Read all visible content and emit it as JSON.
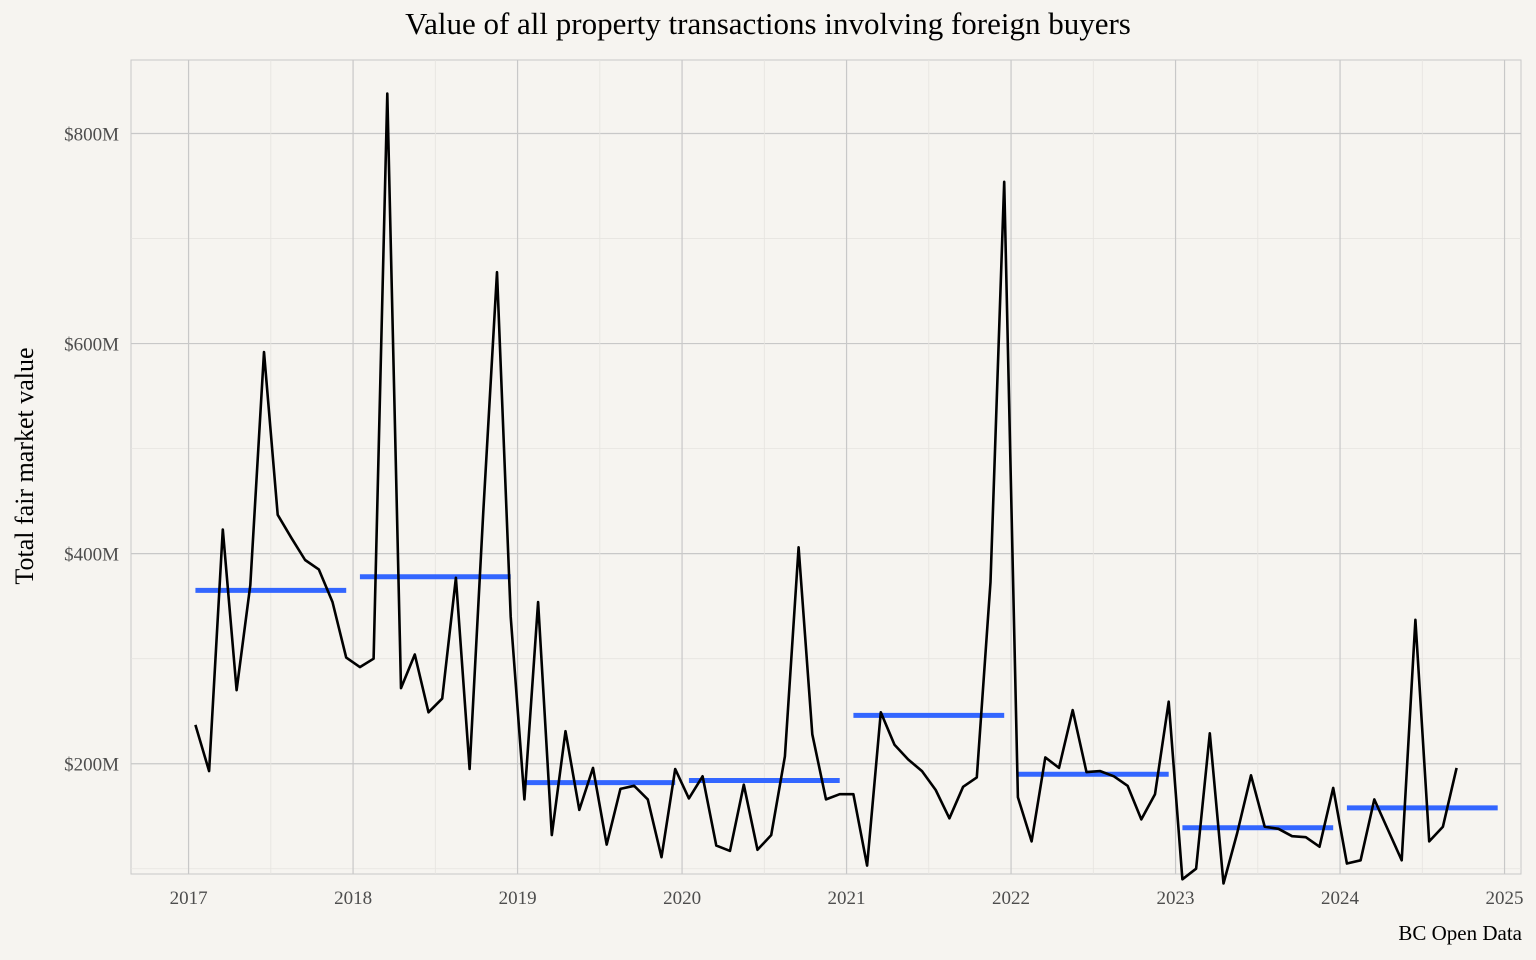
{
  "chart_data": {
    "type": "line",
    "title": "Value of all property transactions involving foreign buyers",
    "xlabel": "",
    "ylabel": "Total fair market value",
    "caption": "BC Open Data",
    "x_ticks": [
      "2017",
      "2018",
      "2019",
      "2020",
      "2021",
      "2022",
      "2023",
      "2024",
      "2025"
    ],
    "y_ticks": [
      "$200M",
      "$400M",
      "$600M",
      "$800M"
    ],
    "xlim": [
      2016.65,
      2025.1
    ],
    "ylim": [
      95,
      870
    ],
    "grid": true,
    "legend": "none",
    "colors": {
      "monthly": "#000000",
      "annual_mean": "#3366ff",
      "background": "#f6f4f0",
      "grid": "#c8c8c8"
    },
    "series": [
      {
        "points": [
          [
            "2017-01",
            237
          ],
          [
            "2017-02",
            193
          ],
          [
            "2017-03",
            423
          ],
          [
            "2017-04",
            270
          ],
          [
            "2017-05",
            370
          ],
          [
            "2017-06",
            592
          ],
          [
            "2017-07",
            437
          ],
          [
            "2017-08",
            415
          ],
          [
            "2017-09",
            394
          ],
          [
            "2017-10",
            385
          ],
          [
            "2017-11",
            354
          ],
          [
            "2017-12",
            301
          ],
          [
            "2018-01",
            292
          ],
          [
            "2018-02",
            300
          ],
          [
            "2018-03",
            838
          ],
          [
            "2018-04",
            272
          ],
          [
            "2018-05",
            304
          ],
          [
            "2018-06",
            249
          ],
          [
            "2018-07",
            262
          ],
          [
            "2018-08",
            377
          ],
          [
            "2018-09",
            195
          ],
          [
            "2018-10",
            440
          ],
          [
            "2018-11",
            668
          ],
          [
            "2018-12",
            340
          ],
          [
            "2019-01",
            166
          ],
          [
            "2019-02",
            354
          ],
          [
            "2019-03",
            132
          ],
          [
            "2019-04",
            231
          ],
          [
            "2019-05",
            156
          ],
          [
            "2019-06",
            196
          ],
          [
            "2019-07",
            123
          ],
          [
            "2019-08",
            176
          ],
          [
            "2019-09",
            179
          ],
          [
            "2019-10",
            166
          ],
          [
            "2019-11",
            111
          ],
          [
            "2019-12",
            195
          ],
          [
            "2020-01",
            167
          ],
          [
            "2020-02",
            188
          ],
          [
            "2020-03",
            122
          ],
          [
            "2020-04",
            117
          ],
          [
            "2020-05",
            180
          ],
          [
            "2020-06",
            118
          ],
          [
            "2020-07",
            132
          ],
          [
            "2020-08",
            207
          ],
          [
            "2020-09",
            406
          ],
          [
            "2020-10",
            228
          ],
          [
            "2020-11",
            166
          ],
          [
            "2020-12",
            171
          ],
          [
            "2021-01",
            171
          ],
          [
            "2021-02",
            103
          ],
          [
            "2021-03",
            249
          ],
          [
            "2021-04",
            218
          ],
          [
            "2021-05",
            204
          ],
          [
            "2021-06",
            193
          ],
          [
            "2021-07",
            175
          ],
          [
            "2021-08",
            148
          ],
          [
            "2021-09",
            178
          ],
          [
            "2021-10",
            187
          ],
          [
            "2021-11",
            373
          ],
          [
            "2021-12",
            754
          ],
          [
            "2022-01",
            168
          ],
          [
            "2022-02",
            126
          ],
          [
            "2022-03",
            206
          ],
          [
            "2022-04",
            196
          ],
          [
            "2022-05",
            251
          ],
          [
            "2022-06",
            192
          ],
          [
            "2022-07",
            193
          ],
          [
            "2022-08",
            188
          ],
          [
            "2022-09",
            179
          ],
          [
            "2022-10",
            147
          ],
          [
            "2022-11",
            171
          ],
          [
            "2022-12",
            259
          ],
          [
            "2023-01",
            90
          ],
          [
            "2023-02",
            100
          ],
          [
            "2023-03",
            229
          ],
          [
            "2023-04",
            86
          ],
          [
            "2023-05",
            134
          ],
          [
            "2023-06",
            189
          ],
          [
            "2023-07",
            140
          ],
          [
            "2023-08",
            138
          ],
          [
            "2023-09",
            131
          ],
          [
            "2023-10",
            130
          ],
          [
            "2023-11",
            121
          ],
          [
            "2023-12",
            177
          ],
          [
            "2024-01",
            105
          ],
          [
            "2024-02",
            108
          ],
          [
            "2024-03",
            166
          ],
          [
            "2024-04",
            137
          ],
          [
            "2024-05",
            108
          ],
          [
            "2024-06",
            337
          ],
          [
            "2024-07",
            126
          ],
          [
            "2024-08",
            140
          ],
          [
            "2024-09",
            196
          ]
        ]
      }
    ],
    "annual_means": [
      {
        "year": "2017",
        "value": 365
      },
      {
        "year": "2018",
        "value": 378
      },
      {
        "year": "2019",
        "value": 182
      },
      {
        "year": "2020",
        "value": 184
      },
      {
        "year": "2021",
        "value": 246
      },
      {
        "year": "2022",
        "value": 190
      },
      {
        "year": "2023",
        "value": 139
      },
      {
        "year": "2024",
        "value": 158
      }
    ]
  }
}
